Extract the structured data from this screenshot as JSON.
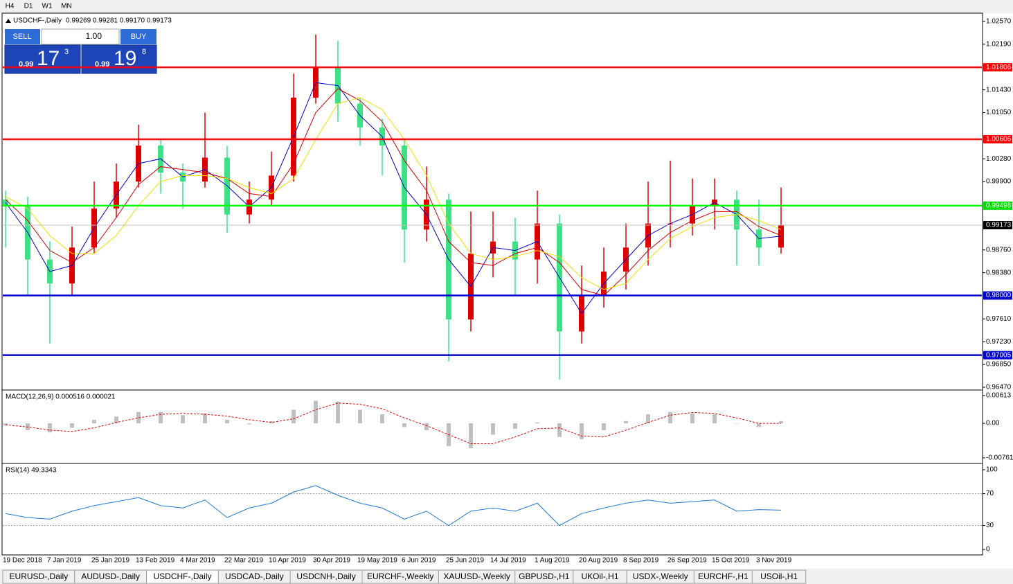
{
  "toolbar": {
    "timeframes": [
      "H4",
      "D1",
      "W1",
      "MN"
    ]
  },
  "trade_panel": {
    "sell": "SELL",
    "buy": "BUY",
    "lot": "1.00",
    "sell_price": {
      "prefix": "0.99",
      "big": "17",
      "small": "3"
    },
    "buy_price": {
      "prefix": "0.99",
      "big": "19",
      "small": "8"
    }
  },
  "chart_data": [
    {
      "type": "candlestick",
      "title": "USDCHF-,Daily",
      "subtitle": "0.99269 0.99281 0.99170 0.99173",
      "categories": [
        "19 Dec 2018",
        null,
        "7 Jan 2019",
        null,
        "25 Jan 2019",
        null,
        "13 Feb 2019",
        null,
        "4 Mar 2019",
        null,
        "22 Mar 2019",
        null,
        "10 Apr 2019",
        null,
        "30 Apr 2019",
        null,
        "19 May 2019",
        null,
        "6 Jun 2019",
        null,
        "25 Jun 2019",
        null,
        "14 Jul 2019",
        null,
        "1 Aug 2019",
        null,
        "20 Aug 2019",
        null,
        "8 Sep 2019",
        null,
        "26 Sep 2019",
        null,
        "15 Oct 2019",
        null,
        "3 Nov 2019",
        null
      ],
      "open": [
        0.996,
        0.995,
        0.986,
        0.982,
        0.988,
        0.9945,
        0.999,
        1.005,
        1.0005,
        0.999,
        1.003,
        0.9935,
        0.996,
        1.0,
        1.013,
        1.018,
        1.012,
        1.008,
        1.005,
        0.991,
        0.996,
        0.976,
        0.987,
        0.989,
        0.986,
        0.992,
        0.974,
        0.98,
        0.984,
        0.988,
        0.992,
        0.992,
        0.995,
        0.996,
        0.991,
        0.988
      ],
      "high": [
        0.9975,
        0.9965,
        0.989,
        0.9915,
        0.999,
        1.002,
        1.0085,
        1.006,
        1.002,
        1.0105,
        1.005,
        0.999,
        1.004,
        1.017,
        1.0235,
        1.0225,
        1.013,
        1.0095,
        1.006,
        1.0015,
        0.997,
        0.994,
        0.994,
        0.993,
        0.9975,
        0.9935,
        0.985,
        0.988,
        0.992,
        0.999,
        1.0025,
        0.9995,
        0.9995,
        0.9975,
        0.996,
        0.998
      ],
      "low": [
        0.988,
        0.98,
        0.972,
        0.98,
        0.987,
        0.993,
        0.998,
        0.997,
        0.9945,
        0.998,
        0.9905,
        0.992,
        0.995,
        0.999,
        1.012,
        1.009,
        1.005,
        1.0,
        0.9855,
        0.989,
        0.969,
        0.974,
        0.983,
        0.98,
        0.982,
        0.966,
        0.972,
        0.978,
        0.981,
        0.985,
        0.988,
        0.99,
        0.991,
        0.985,
        0.985,
        0.987
      ],
      "close": [
        0.995,
        0.986,
        0.982,
        0.988,
        0.9945,
        0.999,
        1.005,
        1.0005,
        0.999,
        1.003,
        0.9935,
        0.996,
        1.0,
        1.013,
        1.018,
        1.012,
        1.008,
        1.005,
        0.991,
        0.996,
        0.976,
        0.987,
        0.989,
        0.986,
        0.992,
        0.974,
        0.98,
        0.984,
        0.988,
        0.992,
        0.992,
        0.995,
        0.996,
        0.991,
        0.988,
        0.99173
      ],
      "bull_color": "#e00000",
      "bear_color": "#3ee086",
      "series": [
        {
          "color": "#0000c8",
          "values": [
            0.9955,
            0.9905,
            0.984,
            0.985,
            0.9913,
            0.9968,
            1.002,
            1.0028,
            0.9998,
            1.001,
            0.9983,
            0.9948,
            0.998,
            1.0065,
            1.0155,
            1.015,
            1.01,
            1.0065,
            0.998,
            0.9935,
            0.986,
            0.9815,
            0.988,
            0.9875,
            0.989,
            0.983,
            0.977,
            0.982,
            0.986,
            0.99,
            0.992,
            0.9935,
            0.9955,
            0.9935,
            0.9895,
            0.9899
          ]
        },
        {
          "color": "#d00000",
          "values": [
            0.996,
            0.9925,
            0.9875,
            0.9855,
            0.988,
            0.993,
            0.9985,
            1.0015,
            1.001,
            1.0005,
            0.9995,
            0.997,
            0.9965,
            1.002,
            1.0105,
            1.0145,
            1.0125,
            1.009,
            1.0025,
            0.9975,
            0.989,
            0.9855,
            0.985,
            0.987,
            0.988,
            0.9855,
            0.981,
            0.98,
            0.9835,
            0.9875,
            0.9905,
            0.9925,
            0.994,
            0.994,
            0.9915,
            0.99
          ]
        },
        {
          "color": "#f0e000",
          "values": [
            0.9965,
            0.9945,
            0.99,
            0.987,
            0.987,
            0.99,
            0.995,
            0.999,
            1.0,
            1.0,
            0.9995,
            0.998,
            0.997,
            0.9995,
            1.006,
            1.012,
            1.013,
            1.011,
            1.006,
            1.0,
            0.992,
            0.987,
            0.986,
            0.9865,
            0.9875,
            0.9865,
            0.983,
            0.981,
            0.982,
            0.986,
            0.9895,
            0.9915,
            0.993,
            0.9935,
            0.9925,
            0.991
          ]
        }
      ],
      "levels": [
        {
          "value": 1.01806,
          "label": "1.01806",
          "color": "#ff0000",
          "box": "#ff0000"
        },
        {
          "value": 1.00606,
          "label": "1.00606",
          "color": "#ff0000",
          "box": "#ff0000"
        },
        {
          "value": 0.99498,
          "label": "0.99498",
          "color": "#00ff00",
          "box": "#00e000"
        },
        {
          "value": 0.99173,
          "label": "0.99173",
          "color": "#c0c0c0",
          "box": "#000000"
        },
        {
          "value": 0.98,
          "label": "0.98000",
          "color": "#0000d0",
          "box": "#0000d0"
        },
        {
          "value": 0.97005,
          "label": "0.97005",
          "color": "#0000d0",
          "box": "#0000d0"
        }
      ],
      "ylim": [
        0.96435,
        1.02697
      ],
      "yticks": [
        {
          "value": 1.0257,
          "label": "1.02570"
        },
        {
          "value": 1.0219,
          "label": "1.02190"
        },
        {
          "value": 1.0143,
          "label": "1.01430"
        },
        {
          "value": 1.0105,
          "label": "1.01050"
        },
        {
          "value": 1.0028,
          "label": "1.00280"
        },
        {
          "value": 0.999,
          "label": "0.99900"
        },
        {
          "value": 0.9876,
          "label": "0.98760"
        },
        {
          "value": 0.9838,
          "label": "0.98380"
        },
        {
          "value": 0.9761,
          "label": "0.97610"
        },
        {
          "value": 0.9723,
          "label": "0.97230"
        },
        {
          "value": 0.9685,
          "label": "0.96850"
        },
        {
          "value": 0.9647,
          "label": "0.96470"
        }
      ]
    },
    {
      "type": "macd",
      "title": "MACD(12,26,9) 0.000516 0.000021",
      "series": [
        {
          "color": "#c0c0c0",
          "values": [
            -0.0005,
            -0.0015,
            -0.002,
            -0.001,
            0.0008,
            0.0015,
            0.0025,
            0.0025,
            0.0018,
            0.0022,
            0.0008,
            -0.0002,
            0.0005,
            0.003,
            0.005,
            0.0048,
            0.003,
            0.002,
            -0.0008,
            -0.0015,
            -0.005,
            -0.0055,
            -0.0025,
            -0.0012,
            0.0002,
            -0.003,
            -0.0035,
            -0.0015,
            0.0005,
            0.002,
            0.0025,
            0.0022,
            0.002,
            0.0,
            -0.0008,
            0.0005
          ]
        },
        {
          "color": "#e00000",
          "values": [
            -0.0003,
            -0.0008,
            -0.0015,
            -0.0018,
            -0.001,
            0.0002,
            0.0012,
            0.002,
            0.0022,
            0.002,
            0.0016,
            0.0008,
            0.0002,
            0.001,
            0.003,
            0.0045,
            0.0042,
            0.0032,
            0.0012,
            -0.0005,
            -0.0025,
            -0.0045,
            -0.0045,
            -0.003,
            -0.0012,
            -0.001,
            -0.0028,
            -0.003,
            -0.0015,
            0.0002,
            0.0018,
            0.0024,
            0.0022,
            0.0012,
            0.0,
            0.0
          ]
        }
      ],
      "ylim": [
        -0.0087,
        0.0072
      ],
      "yticks": [
        {
          "value": 0.00613,
          "label": "0.00613"
        },
        {
          "value": 0,
          "label": "0.00"
        },
        {
          "value": -0.007612,
          "label": "-0.007612"
        }
      ]
    },
    {
      "type": "line",
      "title": "RSI(14) 49.3343",
      "series": [
        {
          "color": "#1e78d2",
          "values": [
            45,
            40,
            38,
            48,
            55,
            60,
            65,
            55,
            52,
            62,
            40,
            52,
            58,
            72,
            80,
            68,
            58,
            52,
            38,
            48,
            30,
            48,
            52,
            48,
            58,
            30,
            45,
            52,
            58,
            62,
            58,
            60,
            62,
            48,
            50,
            49.33
          ]
        }
      ],
      "levels": [
        70,
        30
      ],
      "ylim": [
        -6,
        107
      ],
      "yticks": [
        100,
        70,
        30,
        0
      ]
    }
  ],
  "tabs": [
    "EURUSD-,Daily",
    "AUDUSD-,Daily",
    "USDCHF-,Daily",
    "USDCAD-,Daily",
    "USDCNH-,Daily",
    "EURCHF-,Weekly",
    "XAUUSD-,Weekly",
    "GBPUSD-,H1",
    "UKOil-,H1",
    "USDX-,Weekly",
    "EURCHF-,H1",
    "USOil-,H1"
  ],
  "active_tab": 2
}
